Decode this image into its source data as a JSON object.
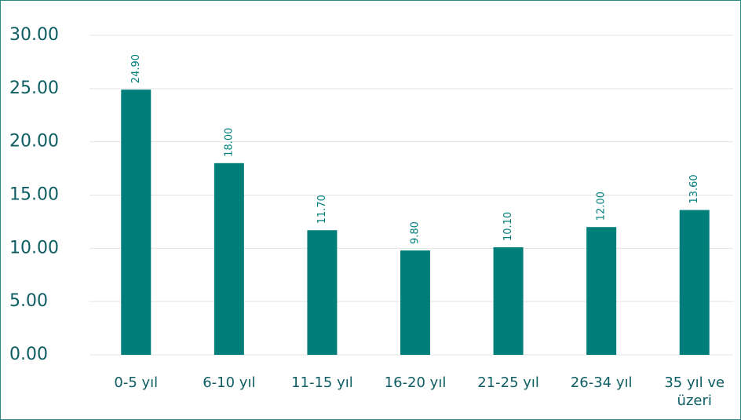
{
  "chart_data": {
    "type": "bar",
    "categories": [
      "0-5 yıl",
      "6-10 yıl",
      "11-15 yıl",
      "16-20 yıl",
      "21-25 yıl",
      "26-34 yıl",
      "35 yıl ve üzeri"
    ],
    "values": [
      24.9,
      18.0,
      11.7,
      9.8,
      10.1,
      12.0,
      13.6
    ],
    "value_labels": [
      "24.90",
      "18.00",
      "11.70",
      "9.80",
      "10.10",
      "12.00",
      "13.60"
    ],
    "color": "#007e7a",
    "ylim": [
      0,
      30
    ],
    "yticks": [
      {
        "value": 0,
        "label": "0.00"
      },
      {
        "value": 5,
        "label": "5.00"
      },
      {
        "value": 10,
        "label": "10.00"
      },
      {
        "value": 15,
        "label": "15.00"
      },
      {
        "value": 20,
        "label": "20.00"
      },
      {
        "value": 25,
        "label": "25.00"
      },
      {
        "value": 30,
        "label": "30.00"
      }
    ],
    "grid": true
  }
}
